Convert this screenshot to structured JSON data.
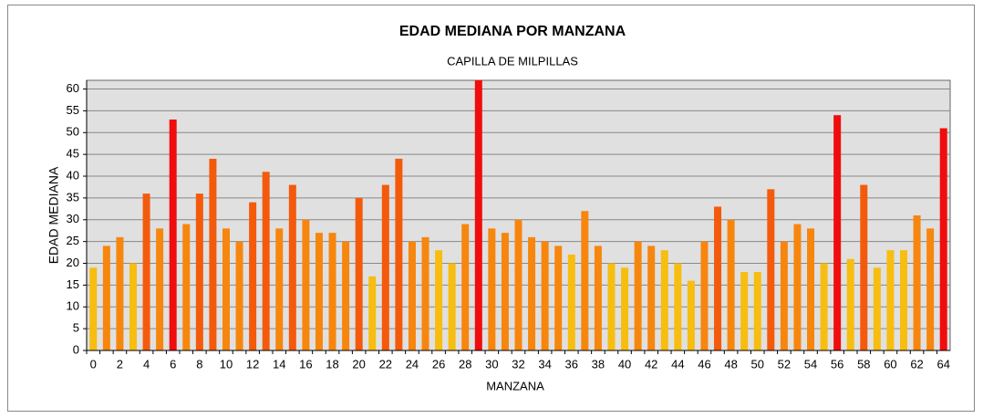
{
  "chart_data": {
    "type": "bar",
    "title": "EDAD MEDIANA POR MANZANA",
    "subtitle": "CAPILLA DE MILPILLAS",
    "x_label": "MANZANA",
    "y_label": "EDAD MEDIANA",
    "categories": [
      0,
      null,
      2,
      null,
      4,
      null,
      6,
      null,
      8,
      null,
      10,
      null,
      12,
      null,
      14,
      null,
      16,
      null,
      18,
      null,
      20,
      null,
      22,
      null,
      24,
      null,
      26,
      null,
      28,
      null,
      30,
      null,
      32,
      null,
      34,
      null,
      36,
      null,
      38,
      null,
      40,
      null,
      42,
      null,
      44,
      null,
      46,
      null,
      48,
      null,
      50,
      null,
      52,
      null,
      54,
      null,
      56,
      null,
      58,
      null,
      60,
      null,
      62,
      null,
      64
    ],
    "values": [
      19,
      24,
      26,
      20,
      36,
      28,
      53,
      29,
      36,
      44,
      28,
      25,
      34,
      41,
      28,
      38,
      30,
      27,
      27,
      25,
      35,
      17,
      38,
      44,
      25,
      26,
      23,
      20,
      29,
      62,
      28,
      27,
      30,
      26,
      25,
      24,
      22,
      32,
      24,
      20,
      19,
      25,
      24,
      23,
      20,
      16,
      25,
      33,
      30,
      18,
      18,
      37,
      25,
      29,
      28,
      20,
      54,
      21,
      38,
      19,
      23,
      23,
      31,
      28,
      51
    ],
    "colors": [
      "#f7bd10",
      "#f7860e",
      "#f7860e",
      "#f7bd10",
      "#f45a0b",
      "#f7860e",
      "#f00d0d",
      "#f7860e",
      "#f45a0b",
      "#f45a0b",
      "#f7860e",
      "#f7860e",
      "#f45a0b",
      "#f45a0b",
      "#f7860e",
      "#f45a0b",
      "#f7860e",
      "#f7860e",
      "#f7860e",
      "#f7860e",
      "#f45a0b",
      "#f7bd10",
      "#f45a0b",
      "#f45a0b",
      "#f7860e",
      "#f7860e",
      "#f7bd10",
      "#f7bd10",
      "#f7860e",
      "#f00d0d",
      "#f7860e",
      "#f7860e",
      "#f7860e",
      "#f7860e",
      "#f7860e",
      "#f7860e",
      "#f7bd10",
      "#f7860e",
      "#f7860e",
      "#f7bd10",
      "#f7bd10",
      "#f7860e",
      "#f7860e",
      "#f7bd10",
      "#f7bd10",
      "#f7bd10",
      "#f7860e",
      "#f45a0b",
      "#f7860e",
      "#f7bd10",
      "#f7bd10",
      "#f45a0b",
      "#f7860e",
      "#f7860e",
      "#f7860e",
      "#f7bd10",
      "#f00d0d",
      "#f7bd10",
      "#f45a0b",
      "#f7bd10",
      "#f7bd10",
      "#f7bd10",
      "#f7860e",
      "#f7860e",
      "#f00d0d"
    ],
    "ylim": [
      0,
      62
    ],
    "yticks": [
      0,
      5,
      10,
      15,
      20,
      25,
      30,
      35,
      40,
      45,
      50,
      55,
      60
    ],
    "grid": true
  }
}
